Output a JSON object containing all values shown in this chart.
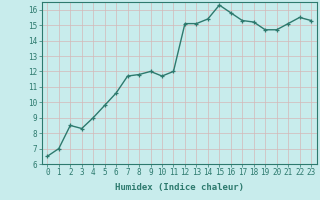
{
  "x": [
    0,
    1,
    2,
    3,
    4,
    5,
    6,
    7,
    8,
    9,
    10,
    11,
    12,
    13,
    14,
    15,
    16,
    17,
    18,
    19,
    20,
    21,
    22,
    23
  ],
  "y": [
    6.5,
    7.0,
    8.5,
    8.3,
    9.0,
    9.8,
    10.6,
    11.7,
    11.8,
    12.0,
    11.7,
    12.0,
    15.1,
    15.1,
    15.4,
    16.3,
    15.8,
    15.3,
    15.2,
    14.7,
    14.7,
    15.1,
    15.5,
    15.3
  ],
  "xlabel": "Humidex (Indice chaleur)",
  "ylim": [
    6,
    16.5
  ],
  "xlim": [
    -0.5,
    23.5
  ],
  "yticks": [
    6,
    7,
    8,
    9,
    10,
    11,
    12,
    13,
    14,
    15,
    16
  ],
  "xticks": [
    0,
    1,
    2,
    3,
    4,
    5,
    6,
    7,
    8,
    9,
    10,
    11,
    12,
    13,
    14,
    15,
    16,
    17,
    18,
    19,
    20,
    21,
    22,
    23
  ],
  "line_color": "#2d7a6e",
  "marker": "+",
  "bg_color": "#c8ecec",
  "grid_color": "#d4b8b8",
  "axis_color": "#2d7a6e",
  "label_color": "#2d7a6e",
  "tick_color": "#2d7a6e",
  "xlabel_fontsize": 6.5,
  "tick_fontsize": 5.5,
  "linewidth": 1.0,
  "markersize": 3.5,
  "markeredgewidth": 0.9
}
